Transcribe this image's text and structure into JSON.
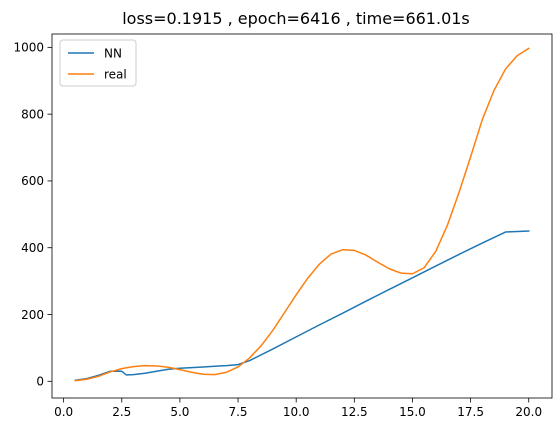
{
  "chart_data": {
    "type": "line",
    "title": "loss=0.1915 , epoch=6416 , time=661.01s",
    "xlabel": "",
    "ylabel": "",
    "xlim": [
      -0.5,
      21.0
    ],
    "ylim": [
      -50,
      1040
    ],
    "x_ticks": [
      0.0,
      2.5,
      5.0,
      7.5,
      10.0,
      12.5,
      15.0,
      17.5,
      20.0
    ],
    "x_tick_labels": [
      "0.0",
      "2.5",
      "5.0",
      "7.5",
      "10.0",
      "12.5",
      "15.0",
      "17.5",
      "20.0"
    ],
    "y_ticks": [
      0,
      200,
      400,
      600,
      800,
      1000
    ],
    "y_tick_labels": [
      "0",
      "200",
      "400",
      "600",
      "800",
      "1000"
    ],
    "grid": false,
    "legend_position": "top-left",
    "series": [
      {
        "name": "NN",
        "color": "#1f77b4",
        "x": [
          0.5,
          1.0,
          1.5,
          2.0,
          2.5,
          2.7,
          3.0,
          3.5,
          4.0,
          4.5,
          5.0,
          5.5,
          6.0,
          6.5,
          7.0,
          7.5,
          8.0,
          9.0,
          10.0,
          11.0,
          12.0,
          13.0,
          14.0,
          15.0,
          16.0,
          17.0,
          18.0,
          19.0,
          20.0
        ],
        "y": [
          3,
          8,
          18,
          30,
          30,
          19,
          20,
          24,
          30,
          36,
          39,
          41,
          43,
          45,
          47,
          50,
          62,
          97,
          133,
          169,
          204,
          240,
          275,
          310,
          345,
          380,
          414,
          447,
          450
        ]
      },
      {
        "name": "real",
        "color": "#ff7f0e",
        "x": [
          0.5,
          1.0,
          1.5,
          2.0,
          2.5,
          3.0,
          3.5,
          4.0,
          4.5,
          5.0,
          5.5,
          6.0,
          6.5,
          7.0,
          7.5,
          8.0,
          8.5,
          9.0,
          9.5,
          10.0,
          10.5,
          11.0,
          11.5,
          12.0,
          12.5,
          13.0,
          13.5,
          14.0,
          14.5,
          15.0,
          15.5,
          16.0,
          16.5,
          17.0,
          17.5,
          18.0,
          18.5,
          19.0,
          19.5,
          20.0
        ],
        "y": [
          2,
          6,
          15,
          28,
          38,
          44,
          47,
          46,
          42,
          35,
          27,
          21,
          20,
          27,
          43,
          70,
          107,
          153,
          206,
          259,
          309,
          351,
          381,
          394,
          392,
          378,
          357,
          337,
          324,
          322,
          340,
          389,
          467,
          565,
          672,
          783,
          870,
          935,
          975,
          997
        ]
      }
    ]
  }
}
